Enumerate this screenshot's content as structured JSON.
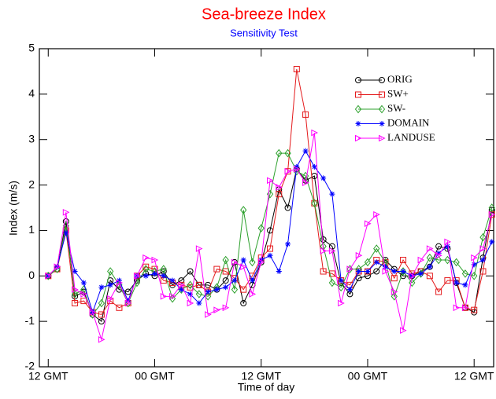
{
  "chart_data": {
    "type": "line",
    "title": "Sea-breeze Index",
    "title_color": "#ff0000",
    "subtitle": "Sensitivity Test",
    "subtitle_color": "#0000ff",
    "x_label": "Time of day",
    "y_label": "Index (m/s)",
    "x": [
      0,
      1,
      2,
      3,
      4,
      5,
      6,
      7,
      8,
      9,
      10,
      11,
      12,
      13,
      14,
      15,
      16,
      17,
      18,
      19,
      20,
      21,
      22,
      23,
      24,
      25,
      26,
      27,
      28,
      29,
      30,
      31,
      32,
      33,
      34,
      35,
      36,
      37,
      38,
      39,
      40,
      41,
      42,
      43,
      44,
      45,
      46,
      47,
      48,
      49,
      50
    ],
    "xlim": [
      -1,
      50.2
    ],
    "xticks": [
      {
        "value": 0,
        "label": "12 GMT"
      },
      {
        "value": 12,
        "label": "00 GMT"
      },
      {
        "value": 24,
        "label": "12 GMT"
      },
      {
        "value": 36,
        "label": "00 GMT"
      },
      {
        "value": 48,
        "label": "12 GMT"
      }
    ],
    "ylim": [
      -2,
      5
    ],
    "yticks": [
      -2,
      -1,
      0,
      1,
      2,
      3,
      4,
      5
    ],
    "legend": "upper right",
    "series": [
      {
        "name": "ORIG",
        "color": "#000000",
        "marker": "circle",
        "values": [
          0,
          0.15,
          1.2,
          -0.45,
          -0.35,
          -0.85,
          -1.0,
          -0.1,
          -0.3,
          -0.35,
          -0.1,
          0.05,
          0.0,
          0.1,
          -0.2,
          -0.1,
          0.1,
          -0.2,
          -0.2,
          -0.3,
          -0.1,
          0.3,
          -0.6,
          -0.2,
          0.3,
          1.0,
          1.9,
          1.5,
          2.35,
          2.1,
          2.2,
          0.8,
          0.65,
          -0.15,
          -0.4,
          -0.05,
          0.0,
          0.1,
          0.35,
          0.15,
          0.0,
          0.0,
          0.1,
          0.2,
          0.65,
          0.6,
          -0.15,
          -0.7,
          -0.8,
          0.4,
          1.45
        ]
      },
      {
        "name": "SW+",
        "color": "#e41a1c",
        "marker": "square",
        "values": [
          0,
          0.15,
          1.0,
          -0.6,
          -0.55,
          -0.8,
          -0.85,
          -0.55,
          -0.7,
          -0.6,
          0.0,
          0.2,
          0.15,
          -0.1,
          -0.15,
          -0.2,
          -0.25,
          -0.2,
          -0.35,
          0.15,
          0.1,
          -0.05,
          -0.3,
          0.0,
          0.4,
          0.6,
          1.8,
          2.3,
          4.55,
          3.55,
          1.6,
          0.1,
          0.05,
          -0.1,
          -0.2,
          0.1,
          0.1,
          0.35,
          0.3,
          -0.05,
          0.35,
          0.05,
          0.1,
          0.0,
          -0.35,
          -0.1,
          -0.1,
          -0.7,
          -0.75,
          0.1,
          1.35
        ]
      },
      {
        "name": "SW-",
        "color": "#2ca02c",
        "marker": "diamond",
        "values": [
          0,
          0.15,
          1.1,
          -0.4,
          -0.3,
          -0.85,
          -0.6,
          0.1,
          -0.2,
          -0.6,
          -0.15,
          0.15,
          0.1,
          0.15,
          -0.5,
          -0.3,
          -0.2,
          -0.4,
          -0.45,
          -0.25,
          0.35,
          -0.3,
          1.45,
          0.3,
          1.05,
          1.8,
          2.7,
          2.7,
          2.3,
          2.2,
          1.6,
          0.65,
          -0.15,
          -0.25,
          0.15,
          0.15,
          0.3,
          0.6,
          0.3,
          -0.45,
          0.1,
          -0.15,
          0.05,
          0.4,
          0.35,
          0.35,
          0.3,
          0.05,
          0.0,
          0.85,
          1.5
        ]
      },
      {
        "name": "DOMAIN",
        "color": "#0000ff",
        "marker": "star",
        "values": [
          0,
          0.2,
          0.95,
          0.1,
          -0.15,
          -0.8,
          -0.25,
          -0.2,
          -0.1,
          -0.55,
          0.0,
          0.0,
          0.05,
          0.0,
          -0.1,
          -0.3,
          -0.4,
          -0.6,
          -0.35,
          -0.3,
          -0.25,
          -0.1,
          0.35,
          -0.1,
          0.35,
          0.45,
          0.1,
          0.7,
          2.4,
          2.75,
          2.4,
          2.15,
          1.8,
          -0.1,
          -0.3,
          0.1,
          0.1,
          0.3,
          0.2,
          0.1,
          0.1,
          0.0,
          0.05,
          0.2,
          0.5,
          0.65,
          -0.15,
          -0.2,
          0.25,
          0.35,
          0.75
        ]
      },
      {
        "name": "LANDUSE",
        "color": "#ff00ff",
        "marker": "triangle-right",
        "values": [
          0,
          0.2,
          1.4,
          -0.3,
          -0.4,
          -0.8,
          -1.4,
          -0.5,
          -0.15,
          -0.6,
          0.0,
          0.4,
          0.35,
          -0.45,
          -0.45,
          -0.2,
          -0.6,
          0.6,
          -0.85,
          -0.75,
          -0.7,
          0.3,
          0.2,
          -0.4,
          0.3,
          2.1,
          1.95,
          2.3,
          2.35,
          2.05,
          3.15,
          0.55,
          0.55,
          -0.6,
          0.15,
          0.45,
          1.15,
          1.35,
          0.1,
          -0.35,
          -1.2,
          0.0,
          0.35,
          0.6,
          0.45,
          0.75,
          -0.7,
          -0.7,
          0.4,
          0.6,
          1.35
        ]
      }
    ]
  }
}
